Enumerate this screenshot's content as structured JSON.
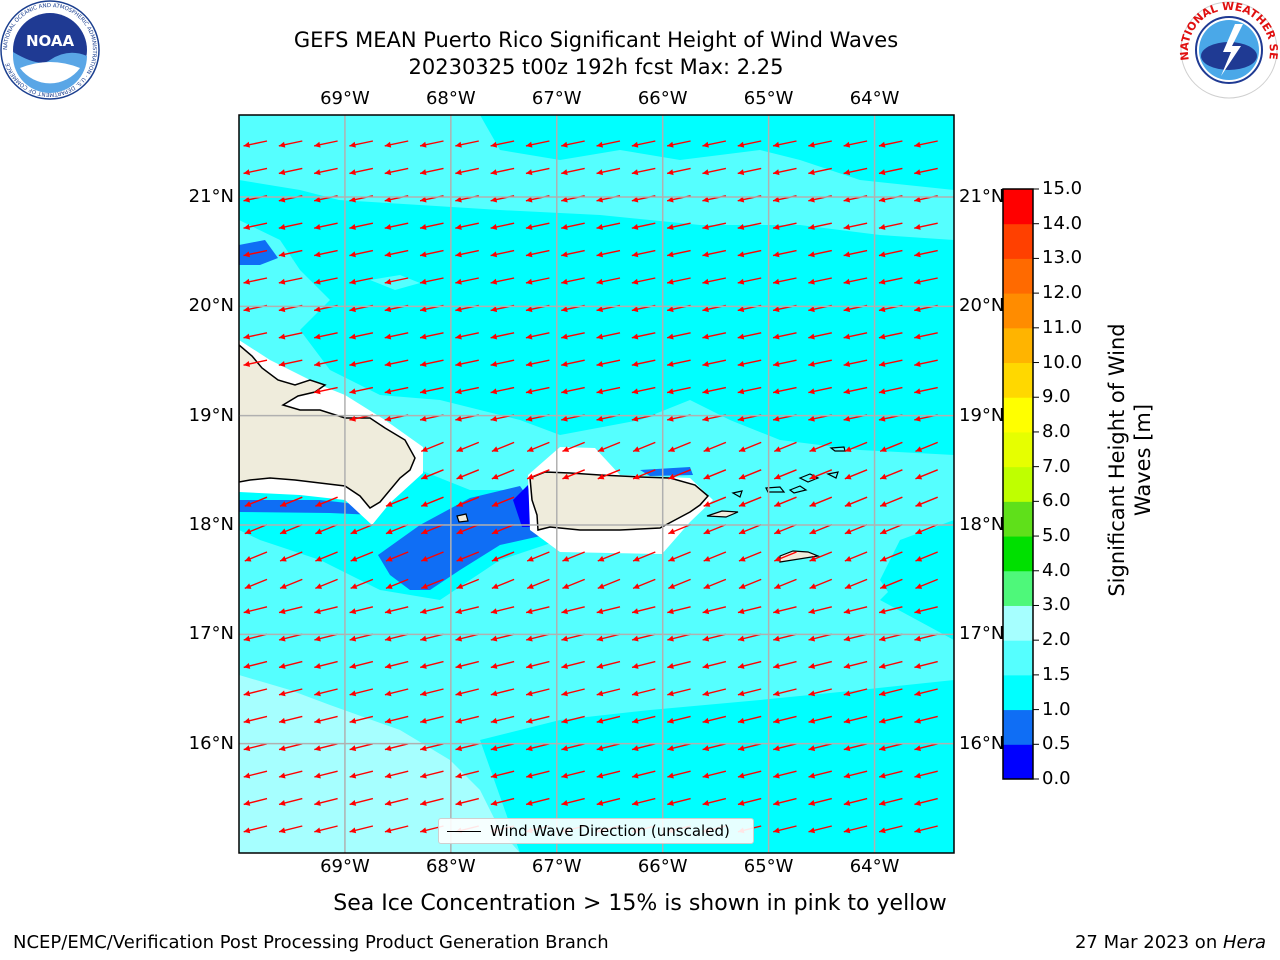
{
  "title": {
    "line1": "GEFS MEAN Puerto Rico Significant Height of Wind Waves",
    "line2": "20230325 t00z 192h fcst   Max: 2.25"
  },
  "logos": {
    "left": "NOAA",
    "left_ring_text": "NATIONAL OCEANIC AND ATMOSPHERIC ADMINISTRATION · U.S. DEPARTMENT OF COMMERCE",
    "right_ring_text": "NATIONAL WEATHER SERVICE"
  },
  "map": {
    "lon_labels": [
      "69°W",
      "68°W",
      "67°W",
      "66°W",
      "65°W",
      "64°W"
    ],
    "lon_values": [
      -69,
      -68,
      -67,
      -66,
      -65,
      -64
    ],
    "lat_labels": [
      "21°N",
      "20°N",
      "19°N",
      "18°N",
      "17°N",
      "16°N"
    ],
    "lat_values": [
      21,
      20,
      19,
      18,
      17,
      16
    ],
    "extent": {
      "lon_min": -70.0,
      "lon_max": -63.25,
      "lat_min": 15.0,
      "lat_max": 21.75
    },
    "grid_color": "#b0b0b0",
    "land_color": "#efecdc",
    "arrow_color": "#ff0000",
    "arrow_direction": "from east-northeast, pointing west-southwest",
    "legend_label": "Wind Wave Direction (unscaled)"
  },
  "colorbar": {
    "ticks": [
      "15.0",
      "14.0",
      "13.0",
      "12.0",
      "11.0",
      "10.0",
      "9.0",
      "8.0",
      "7.0",
      "6.0",
      "5.0",
      "4.0",
      "3.0",
      "2.0",
      "1.5",
      "1.0",
      "0.5",
      "0.0"
    ],
    "levels": [
      0.0,
      0.5,
      1.0,
      1.5,
      2.0,
      3.0,
      4.0,
      5.0,
      6.0,
      7.0,
      8.0,
      9.0,
      10.0,
      11.0,
      12.0,
      13.0,
      14.0,
      15.0
    ],
    "colors": [
      "#0000ff",
      "#0f6ef5",
      "#00ffff",
      "#55ffff",
      "#a6ffff",
      "#4ef87a",
      "#00e000",
      "#5fe01a",
      "#bfff00",
      "#e6ff00",
      "#ffff00",
      "#ffd800",
      "#ffb400",
      "#ff8c00",
      "#ff6a00",
      "#ff4000",
      "#ff0000"
    ],
    "label": "Significant Height of Wind Waves [m]",
    "label_line1": "Significant Height of Wind",
    "label_line2": "Waves [m]"
  },
  "note": "Sea Ice Concentration > 15% is shown in pink to yellow",
  "footer": {
    "left": "NCEP/EMC/Verification Post Processing Product Generation Branch",
    "right_prefix": "27 Mar 2023 on ",
    "right_host": "Hera"
  }
}
